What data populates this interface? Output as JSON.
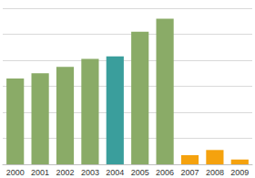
{
  "chart_data": {
    "type": "bar",
    "categories": [
      "2000",
      "2001",
      "2002",
      "2003",
      "2004",
      "2005",
      "2006",
      "2007",
      "2008",
      "2009"
    ],
    "values": [
      3.3,
      3.5,
      3.75,
      4.05,
      4.15,
      5.1,
      5.6,
      0.35,
      0.55,
      0.18
    ],
    "colors": [
      "#8aab67",
      "#8aab67",
      "#8aab67",
      "#8aab67",
      "#3a9e9c",
      "#8aab67",
      "#8aab67",
      "#f5a20e",
      "#f5a20e",
      "#f5a20e"
    ],
    "ylim": [
      0,
      6
    ],
    "yticks": [
      0,
      1,
      2,
      3,
      4,
      5,
      6
    ],
    "grid": true,
    "tick_labels": "x"
  }
}
